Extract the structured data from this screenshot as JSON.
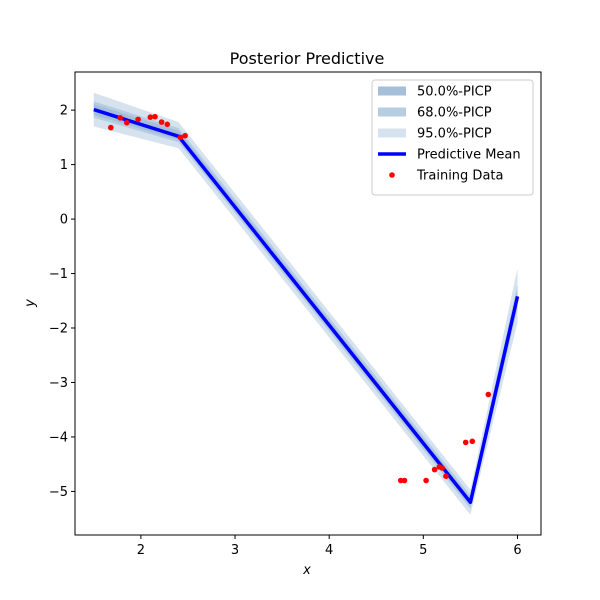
{
  "chart_data": {
    "type": "line",
    "title": "Posterior Predictive",
    "xlabel": "x",
    "ylabel": "y",
    "xlim": [
      1.3,
      6.25
    ],
    "ylim": [
      -5.8,
      2.7
    ],
    "xticks": [
      2,
      3,
      4,
      5,
      6
    ],
    "yticks": [
      -5,
      -4,
      -3,
      -2,
      -1,
      0,
      1,
      2
    ],
    "grid": false,
    "legend_position": "top-right",
    "series": [
      {
        "name": "95.0%-PICP",
        "kind": "band",
        "color": "#d6e2ee",
        "x": [
          1.5,
          2.4,
          5.5,
          6.0
        ],
        "lower": [
          1.7,
          1.3,
          -5.43,
          -1.9
        ],
        "upper": [
          2.32,
          1.78,
          -4.97,
          -0.9
        ]
      },
      {
        "name": "68.0%-PICP",
        "kind": "band",
        "color": "#b7cde2",
        "x": [
          1.5,
          2.4,
          5.5,
          6.0
        ],
        "lower": [
          1.86,
          1.41,
          -5.32,
          -1.65
        ],
        "upper": [
          2.16,
          1.67,
          -5.07,
          -1.2
        ]
      },
      {
        "name": "50.0%-PICP",
        "kind": "band",
        "color": "#a6bfd8",
        "x": [
          1.5,
          2.4,
          5.5,
          6.0
        ],
        "lower": [
          1.91,
          1.45,
          -5.27,
          -1.55
        ],
        "upper": [
          2.11,
          1.62,
          -5.12,
          -1.3
        ]
      },
      {
        "name": "Predictive Mean",
        "kind": "line",
        "color": "#0000ff",
        "x": [
          1.5,
          2.4,
          5.5,
          6.0
        ],
        "y": [
          2.01,
          1.52,
          -5.2,
          -1.42
        ]
      },
      {
        "name": "Training Data",
        "kind": "scatter",
        "color": "#ff0000",
        "x": [
          1.68,
          1.78,
          1.85,
          1.97,
          2.1,
          2.15,
          2.22,
          2.28,
          2.42,
          2.47,
          4.76,
          4.8,
          5.03,
          5.12,
          5.17,
          5.2,
          5.24,
          5.45,
          5.52,
          5.69
        ],
        "y": [
          1.68,
          1.86,
          1.77,
          1.83,
          1.87,
          1.88,
          1.78,
          1.74,
          1.5,
          1.53,
          -4.8,
          -4.8,
          -4.8,
          -4.6,
          -4.55,
          -4.57,
          -4.72,
          -4.1,
          -4.08,
          -3.22
        ]
      }
    ],
    "legend": [
      {
        "label": "50.0%-PICP",
        "kind": "band",
        "color": "#a6bfd8"
      },
      {
        "label": "68.0%-PICP",
        "kind": "band",
        "color": "#b7cde2"
      },
      {
        "label": "95.0%-PICP",
        "kind": "band",
        "color": "#d6e2ee"
      },
      {
        "label": "Predictive Mean",
        "kind": "line",
        "color": "#0000ff"
      },
      {
        "label": "Training Data",
        "kind": "scatter",
        "color": "#ff0000"
      }
    ]
  }
}
